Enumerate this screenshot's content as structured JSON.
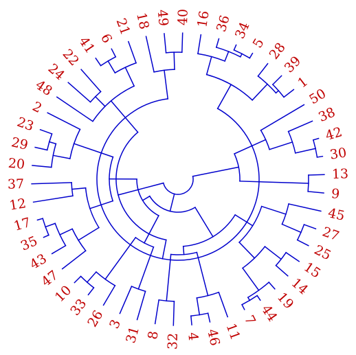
{
  "tree": {
    "leaves": [
      "16",
      "36",
      "34",
      "5",
      "28",
      "39",
      "1",
      "50",
      "38",
      "42",
      "30",
      "13",
      "9",
      "45",
      "27",
      "25",
      "15",
      "14",
      "19",
      "44",
      "7",
      "11",
      "46",
      "4",
      "32",
      "8",
      "31",
      "3",
      "26",
      "33",
      "10",
      "47",
      "43",
      "35",
      "17",
      "12",
      "37",
      "20",
      "29",
      "23",
      "2",
      "48",
      "24",
      "22",
      "41",
      "6",
      "21",
      "18",
      "49",
      "40"
    ],
    "root_children": [
      [
        "16",
        "36",
        "34",
        "5",
        "28",
        "39",
        "1",
        "40",
        "49",
        "18",
        "21",
        "6",
        "41",
        "22",
        "24",
        "48"
      ],
      [
        "50",
        "38",
        "42",
        "30",
        "13",
        "9"
      ],
      [
        "45",
        "27",
        "25",
        "15",
        "14",
        "19",
        "44",
        "7",
        "11",
        "46",
        "4",
        "32",
        "8",
        "31",
        "3",
        "26",
        "33",
        "10",
        "47",
        "43",
        "35",
        "17",
        "12",
        "37",
        "20",
        "29",
        "23",
        "2"
      ]
    ]
  },
  "colors": {
    "branch": "#0000cc",
    "label": "#c00000",
    "background": "#ffffff"
  }
}
